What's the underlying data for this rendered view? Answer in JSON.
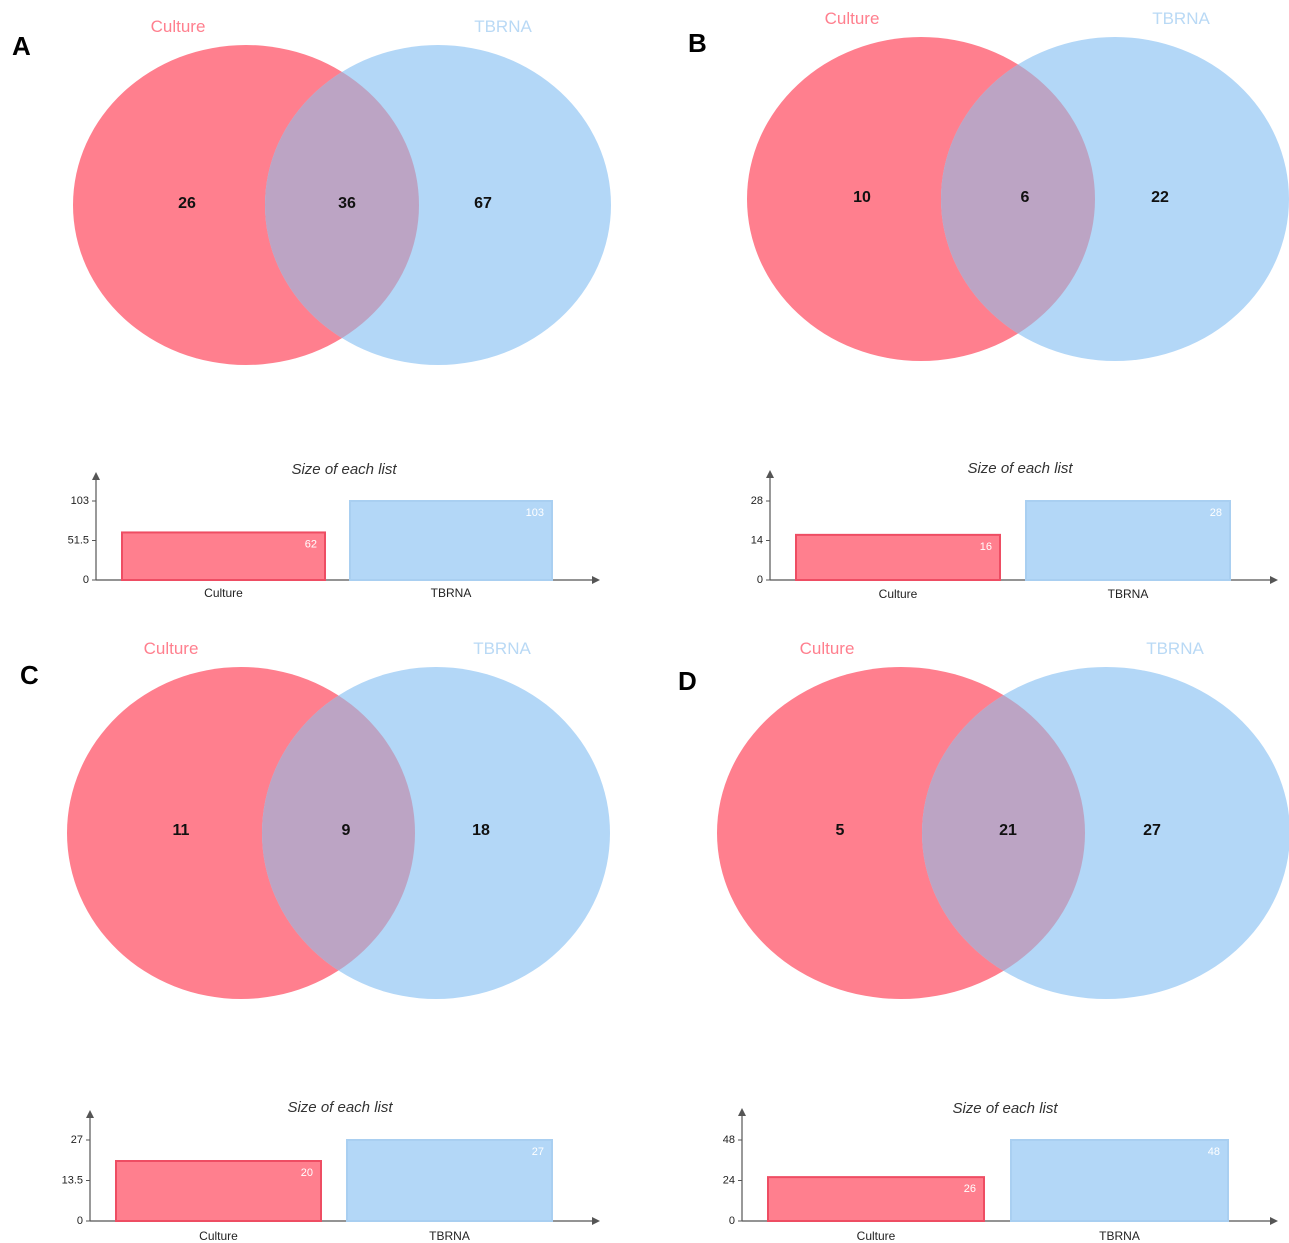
{
  "colors": {
    "set_a_fill": "#ff7f8e",
    "set_b_fill": "#b3d7f7",
    "overlap": "#bca4c4",
    "set_a_label": "#ff7f8e",
    "set_b_label": "#b9d9f5",
    "bar_a_stroke": "#ee4d63",
    "bar_b_stroke": "#a9cff1",
    "axis": "#555555"
  },
  "panels": [
    {
      "letter": "A",
      "sets": [
        "Culture",
        "TBRNA"
      ],
      "regions": {
        "only_a": "26",
        "both": "36",
        "only_b": "67"
      },
      "bar_chart": {
        "title": "Size of each list",
        "categories": [
          "Culture",
          "TBRNA"
        ],
        "values": [
          62,
          103
        ],
        "value_labels": [
          "62",
          "103"
        ],
        "ticks": [
          "0",
          "51.5",
          "103"
        ],
        "ymax": 103
      }
    },
    {
      "letter": "B",
      "sets": [
        "Culture",
        "TBRNA"
      ],
      "regions": {
        "only_a": "10",
        "both": "6",
        "only_b": "22"
      },
      "bar_chart": {
        "title": "Size of each list",
        "categories": [
          "Culture",
          "TBRNA"
        ],
        "values": [
          16,
          28
        ],
        "value_labels": [
          "16",
          "28"
        ],
        "ticks": [
          "0",
          "14",
          "28"
        ],
        "ymax": 28
      }
    },
    {
      "letter": "C",
      "sets": [
        "Culture",
        "TBRNA"
      ],
      "regions": {
        "only_a": "11",
        "both": "9",
        "only_b": "18"
      },
      "bar_chart": {
        "title": "Size of each list",
        "categories": [
          "Culture",
          "TBRNA"
        ],
        "values": [
          20,
          27
        ],
        "value_labels": [
          "20",
          "27"
        ],
        "ticks": [
          "0",
          "13.5",
          "27"
        ],
        "ymax": 27
      }
    },
    {
      "letter": "D",
      "sets": [
        "Culture",
        "TBRNA"
      ],
      "regions": {
        "only_a": "5",
        "both": "21",
        "only_b": "27"
      },
      "bar_chart": {
        "title": "Size of each list",
        "categories": [
          "Culture",
          "TBRNA"
        ],
        "values": [
          26,
          48
        ],
        "value_labels": [
          "26",
          "48"
        ],
        "ticks": [
          "0",
          "24",
          "48"
        ],
        "ymax": 48
      }
    }
  ]
}
